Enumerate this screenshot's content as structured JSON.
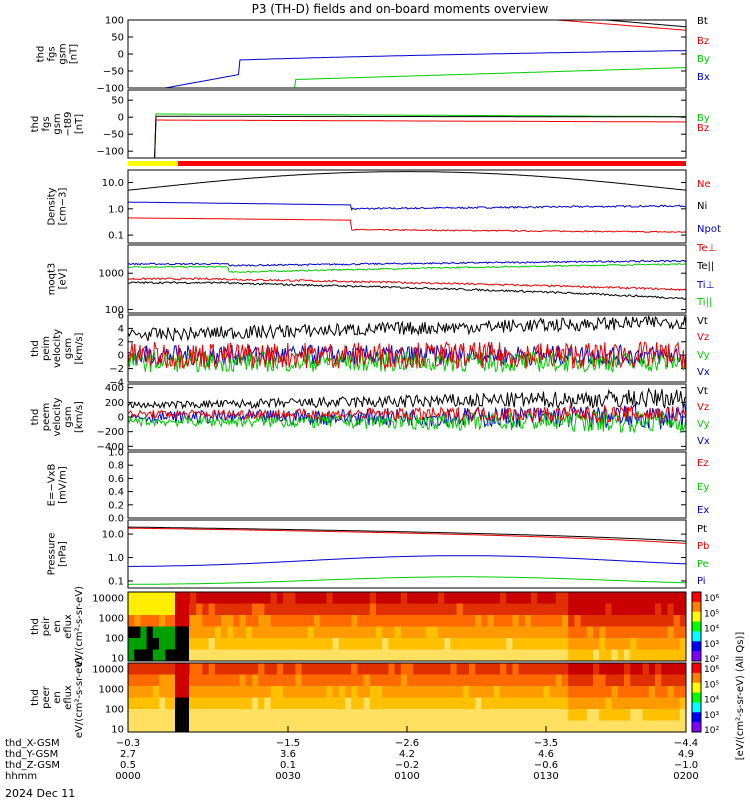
{
  "title": "P3 (TH-D) fields and on-board moments overview",
  "date_label": "2024 Dec 11",
  "colors": {
    "black": "#000000",
    "red": "#ee0000",
    "green": "#00cc00",
    "blue": "#0000cc",
    "yellow": "#ffff00",
    "barRed": "#ff0000"
  },
  "chart_data": [
    {
      "type": "line",
      "id": "fgs_gsm",
      "ylabel": "thd fgs gsm [nT]",
      "ylim": [
        -100,
        100
      ],
      "ticks": [
        "100",
        "50",
        "0",
        "−50",
        "−100"
      ],
      "legend": [
        {
          "name": "Bt",
          "color": "black"
        },
        {
          "name": "Bz",
          "color": "red"
        },
        {
          "name": "By",
          "color": "green"
        },
        {
          "name": "Bx",
          "color": "blue"
        }
      ]
    },
    {
      "type": "line",
      "id": "fgs_gsm_ts",
      "ylabel": "thd fgs gsm −t89 [nT]",
      "ylim": [
        -120,
        80
      ],
      "ticks": [
        "50",
        "0",
        "−50",
        "−100"
      ],
      "legend": [
        {
          "name": "By",
          "color": "green"
        },
        {
          "name": "Bz",
          "color": "red"
        }
      ]
    },
    {
      "type": "line",
      "id": "density",
      "ylabel": "Density [cm−3]",
      "scale": "log",
      "ylim": [
        0.05,
        30
      ],
      "ticks": [
        "10.0",
        "1.0",
        "0.1"
      ],
      "legend": [
        {
          "name": "Ne",
          "color": "red"
        },
        {
          "name": "Ni",
          "color": "black"
        },
        {
          "name": "Npot",
          "color": "blue"
        }
      ]
    },
    {
      "type": "line",
      "id": "temperature",
      "ylabel": "moqt3 [eV]",
      "scale": "log",
      "ylim": [
        80,
        6000
      ],
      "ticks": [
        "1000",
        "100"
      ],
      "legend": [
        {
          "name": "Te⊥",
          "color": "red"
        },
        {
          "name": "Te||",
          "color": "black"
        },
        {
          "name": "Ti⊥",
          "color": "blue"
        },
        {
          "name": "Ti||",
          "color": "green"
        }
      ]
    },
    {
      "type": "line",
      "id": "peim_velocity",
      "ylabel": "thd peim velocity gsm [km/s]",
      "ylim": [
        -4,
        6
      ],
      "ticks": [
        "6",
        "4",
        "2",
        "0",
        "−2",
        "−4"
      ],
      "legend": [
        {
          "name": "Vt",
          "color": "black"
        },
        {
          "name": "Vz",
          "color": "red"
        },
        {
          "name": "Vy",
          "color": "green"
        },
        {
          "name": "Vx",
          "color": "blue"
        }
      ]
    },
    {
      "type": "line",
      "id": "peem_velocity",
      "ylabel": "thd peem velocity gsm [km/s]",
      "ylim": [
        -450,
        450
      ],
      "ticks": [
        "400",
        "200",
        "0",
        "−200",
        "−400"
      ],
      "legend": [
        {
          "name": "Vt",
          "color": "black"
        },
        {
          "name": "Vz",
          "color": "red"
        },
        {
          "name": "Vy",
          "color": "green"
        },
        {
          "name": "Vx",
          "color": "blue"
        }
      ]
    },
    {
      "type": "line",
      "id": "efield",
      "ylabel": "E=−VxB [mV/m]",
      "ylim": [
        0,
        1
      ],
      "ticks": [
        "1.0",
        "0.8",
        "0.6",
        "0.4",
        "0.2",
        "0.0"
      ],
      "legend": [
        {
          "name": "Ez",
          "color": "red"
        },
        {
          "name": "Ey",
          "color": "green"
        },
        {
          "name": "Ex",
          "color": "blue"
        }
      ]
    },
    {
      "type": "line",
      "id": "pressure",
      "ylabel": "Pressure [nPa]",
      "scale": "log",
      "ylim": [
        0.05,
        40
      ],
      "ticks": [
        "10.0",
        "1.0",
        "0.1"
      ],
      "legend": [
        {
          "name": "Pt",
          "color": "black"
        },
        {
          "name": "Pb",
          "color": "red"
        },
        {
          "name": "Pe",
          "color": "green"
        },
        {
          "name": "Pi",
          "color": "blue"
        }
      ]
    },
    {
      "type": "heatmap",
      "id": "peir_spec",
      "ylabel": "thd peir en eflux eV/(cm²-s-sr-eV)",
      "scale": "log",
      "ylim": [
        7,
        20000
      ],
      "ticks": [
        "10000",
        "1000",
        "100",
        "10"
      ]
    },
    {
      "type": "heatmap",
      "id": "peer_spec",
      "ylabel": "thd peer en eflux eV/(cm²-s-sr-eV)",
      "scale": "log",
      "ylim": [
        7,
        20000
      ],
      "ticks": [
        "10000",
        "1000",
        "100",
        "10"
      ]
    }
  ],
  "colorbar": {
    "label": "[eV/(cm²-s-sr-eV) (All Qs)]",
    "ticks": [
      "10⁶",
      "10⁵",
      "10⁴",
      "10³",
      "10²"
    ]
  },
  "x_axis": {
    "rows": [
      {
        "label": "thd_X-GSM",
        "values": [
          "−0.3",
          "−1.5",
          "−2.6",
          "−3.5",
          "−4.4"
        ]
      },
      {
        "label": "thd_Y-GSM",
        "values": [
          "2.7",
          "3.6",
          "4.2",
          "4.6",
          "4.9"
        ]
      },
      {
        "label": "thd_Z-GSM",
        "values": [
          "0.5",
          "0.1",
          "−0.2",
          "−0.6",
          "−1.0"
        ]
      },
      {
        "label": "hhmm",
        "values": [
          "0000",
          "0030",
          "0100",
          "0130",
          "0200"
        ]
      }
    ]
  }
}
